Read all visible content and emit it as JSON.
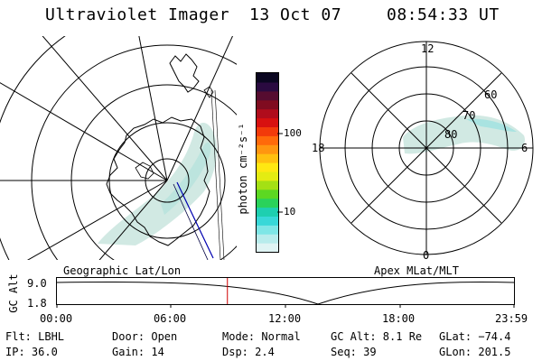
{
  "header": {
    "instrument": "Ultraviolet Imager",
    "date": "13 Oct 07",
    "time": "08:54:33 UT"
  },
  "colorbar": {
    "unit_label": "photon cm⁻²s⁻¹",
    "tick_100": "100",
    "tick_10": "10",
    "colors": [
      "#dff4f4",
      "#b8ecec",
      "#7ee6e6",
      "#38d8d8",
      "#1ecfb0",
      "#2ad25a",
      "#5cd822",
      "#a4e014",
      "#e4ec12",
      "#ffe812",
      "#ffc010",
      "#ff9610",
      "#ff6a0a",
      "#f23a0a",
      "#d81010",
      "#b00c1c",
      "#800c20",
      "#560c30",
      "#2a0a40",
      "#0a0620"
    ]
  },
  "geo_map": {
    "label": "Geographic Lat/Lon"
  },
  "apex_map": {
    "label": "Apex MLat/MLT",
    "mlt_12": "12",
    "mlt_18": "18",
    "mlt_6": "6",
    "mlt_0": "0",
    "lat_60": "60",
    "lat_70": "70",
    "lat_80": "80"
  },
  "orbit_plot": {
    "ylabel": "GC Alt",
    "y_top": "9.0",
    "y_bottom": "1.8",
    "x_ticks": [
      "00:00",
      "06:00",
      "12:00",
      "18:00",
      "23:59"
    ],
    "current_time_fraction": 0.373
  },
  "info": {
    "filter": "Flt: LBHL",
    "ip": "IP: 36.0",
    "door": "Door: Open",
    "gain": "Gain: 14",
    "mode": "Mode: Normal",
    "dsp": "Dsp:    2.4",
    "gc_alt": "GC Alt: 8.1 Re",
    "seq": "Seq: 39",
    "glat": "GLat: −74.4",
    "glon": "GLon: 201.5"
  }
}
